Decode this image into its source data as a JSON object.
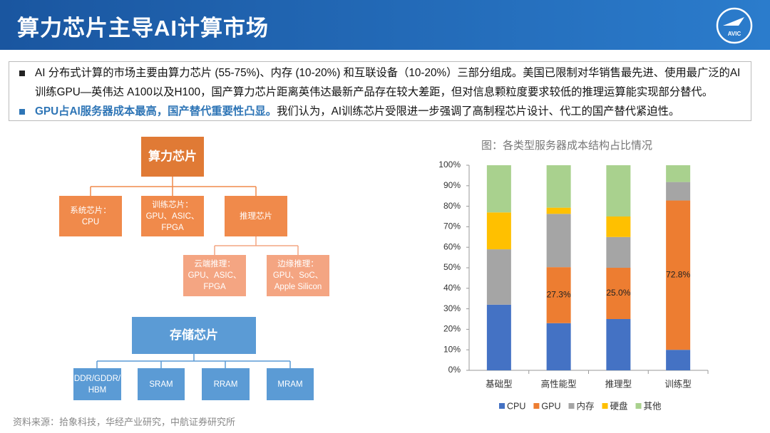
{
  "header": {
    "title": "算力芯片主导AI计算市场",
    "logo_text": "AVIC"
  },
  "bullets": [
    {
      "text": "AI 分布式计算的市场主要由算力芯片 (55-75%)、内存 (10-20%) 和互联设备（10-20%）三部分组成。美国已限制对华销售最先进、使用最广泛的AI训练GPU—英伟达 A100以及H100，国产算力芯片距离英伟达最新产品存在较大差距，但对信息颗粒度要求较低的推理运算能实现部分替代。"
    },
    {
      "highlight": "GPU占AI服务器成本最高，国产替代重要性凸显。",
      "text": "我们认为，AI训练芯片受限进一步强调了高制程芯片设计、代工的国产替代紧迫性。"
    }
  ],
  "diagram": {
    "nodes": [
      {
        "label": "算力芯片"
      },
      {
        "label": "系统芯片：\nCPU"
      },
      {
        "label": "训练芯片：\nGPU、ASIC、\nFPGA"
      },
      {
        "label": "推理芯片"
      },
      {
        "label": "云端推理：\nGPU、ASIC、\nFPGA"
      },
      {
        "label": "边缘推理：\nGPU、SoC、\nApple Silicon"
      },
      {
        "label": "存储芯片"
      },
      {
        "label": "DDR/GDDR/\nHBM"
      },
      {
        "label": "SRAM"
      },
      {
        "label": "RRAM"
      },
      {
        "label": "MRAM"
      }
    ]
  },
  "chart_data": {
    "type": "stacked_bar",
    "title": "图：各类型服务器成本结构占比情况",
    "categories": [
      "基础型",
      "高性能型",
      "推理型",
      "训练型"
    ],
    "series": [
      {
        "name": "CPU",
        "color": "#4472c4",
        "values": [
          32,
          23,
          25,
          10
        ]
      },
      {
        "name": "GPU",
        "color": "#ed7d31",
        "values": [
          0,
          27.3,
          25.0,
          72.8
        ],
        "value_labels": [
          null,
          "27.3%",
          "25.0%",
          "72.8%"
        ]
      },
      {
        "name": "内存",
        "color": "#a5a5a5",
        "values": [
          27,
          26,
          15,
          9
        ]
      },
      {
        "name": "硬盘",
        "color": "#ffc000",
        "values": [
          18,
          3,
          10,
          0
        ]
      },
      {
        "name": "其他",
        "color": "#a9d18e",
        "values": [
          23,
          20.7,
          25,
          8.2
        ]
      }
    ],
    "ylim": [
      0,
      100
    ],
    "yticks": [
      {
        "value": 0,
        "label": "0%"
      },
      {
        "value": 10,
        "label": "10%"
      },
      {
        "value": 20,
        "label": "20%"
      },
      {
        "value": 30,
        "label": "30%"
      },
      {
        "value": 40,
        "label": "40%"
      },
      {
        "value": 50,
        "label": "50%"
      },
      {
        "value": 60,
        "label": "60%"
      },
      {
        "value": 70,
        "label": "70%"
      },
      {
        "value": 80,
        "label": "80%"
      },
      {
        "value": 90,
        "label": "90%"
      },
      {
        "value": 100,
        "label": "100%"
      }
    ],
    "legend": "bottom"
  },
  "source": "资料来源：拾象科技，华经产业研究，中航证券研究所"
}
